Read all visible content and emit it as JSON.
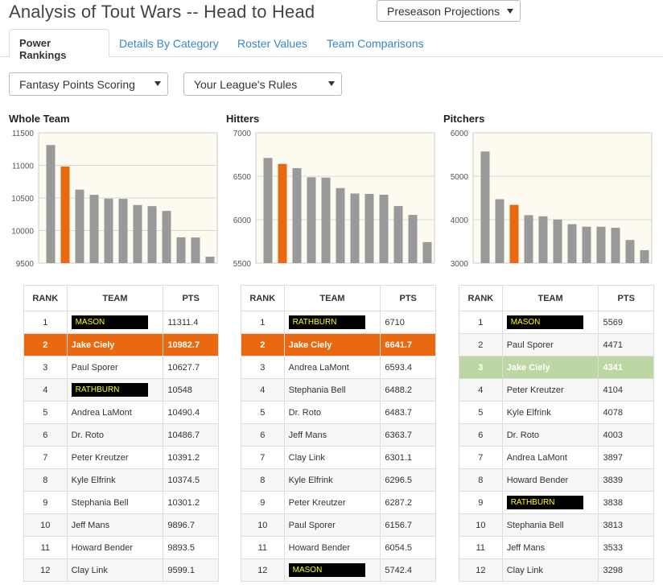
{
  "header": {
    "title": "Analysis of Tout Wars -- Head to Head",
    "projection_select": "Preseason Projections"
  },
  "tabs": [
    {
      "label": "Power Rankings",
      "active": true
    },
    {
      "label": "Details By Category",
      "active": false
    },
    {
      "label": "Roster Values",
      "active": false
    },
    {
      "label": "Team Comparisons",
      "active": false
    }
  ],
  "filters": {
    "scoring": "Fantasy Points Scoring",
    "rules": "Your League's Rules"
  },
  "colors": {
    "highlight": "#e8690f",
    "bar": "#999999",
    "green": "#bcd7a3",
    "plot_bg": "#fdfbef"
  },
  "table_headers": {
    "rank": "RANK",
    "team": "TEAM",
    "pts": "PTS"
  },
  "panels": [
    {
      "title": "Whole Team",
      "highlight_style": "orange",
      "rows": [
        {
          "rank": "1",
          "team": "MASON",
          "pts": "11311.4",
          "redacted": true
        },
        {
          "rank": "2",
          "team": "Jake Ciely",
          "pts": "10982.7",
          "highlight": true
        },
        {
          "rank": "3",
          "team": "Paul Sporer",
          "pts": "10627.7"
        },
        {
          "rank": "4",
          "team": "RATHBURN",
          "pts": "10548",
          "redacted": true
        },
        {
          "rank": "5",
          "team": "Andrea LaMont",
          "pts": "10490.4"
        },
        {
          "rank": "6",
          "team": "Dr. Roto",
          "pts": "10486.7"
        },
        {
          "rank": "7",
          "team": "Peter Kreutzer",
          "pts": "10391.2"
        },
        {
          "rank": "8",
          "team": "Kyle Elfrink",
          "pts": "10374.5"
        },
        {
          "rank": "9",
          "team": "Stephania Bell",
          "pts": "10301.2"
        },
        {
          "rank": "10",
          "team": "Jeff Mans",
          "pts": "9896.7"
        },
        {
          "rank": "11",
          "team": "Howard Bender",
          "pts": "9893.5"
        },
        {
          "rank": "12",
          "team": "Clay Link",
          "pts": "9599.1"
        }
      ]
    },
    {
      "title": "Hitters",
      "highlight_style": "orange",
      "rows": [
        {
          "rank": "1",
          "team": "RATHBURN",
          "pts": "6710",
          "redacted": true
        },
        {
          "rank": "2",
          "team": "Jake Ciely",
          "pts": "6641.7",
          "highlight": true
        },
        {
          "rank": "3",
          "team": "Andrea LaMont",
          "pts": "6593.4"
        },
        {
          "rank": "4",
          "team": "Stephania Bell",
          "pts": "6488.2"
        },
        {
          "rank": "5",
          "team": "Dr. Roto",
          "pts": "6483.7"
        },
        {
          "rank": "6",
          "team": "Jeff Mans",
          "pts": "6363.7"
        },
        {
          "rank": "7",
          "team": "Clay Link",
          "pts": "6301.1"
        },
        {
          "rank": "8",
          "team": "Kyle Elfrink",
          "pts": "6296.5"
        },
        {
          "rank": "9",
          "team": "Peter Kreutzer",
          "pts": "6287.2"
        },
        {
          "rank": "10",
          "team": "Paul Sporer",
          "pts": "6156.7"
        },
        {
          "rank": "11",
          "team": "Howard Bender",
          "pts": "6054.5"
        },
        {
          "rank": "12",
          "team": "MASON",
          "pts": "5742.4",
          "redacted": true
        }
      ]
    },
    {
      "title": "Pitchers",
      "highlight_style": "green",
      "rows": [
        {
          "rank": "1",
          "team": "MASON",
          "pts": "5569",
          "redacted": true
        },
        {
          "rank": "2",
          "team": "Paul Sporer",
          "pts": "4471"
        },
        {
          "rank": "3",
          "team": "Jake Ciely",
          "pts": "4341",
          "highlight": true
        },
        {
          "rank": "4",
          "team": "Peter Kreutzer",
          "pts": "4104"
        },
        {
          "rank": "5",
          "team": "Kyle Elfrink",
          "pts": "4078"
        },
        {
          "rank": "6",
          "team": "Dr. Roto",
          "pts": "4003"
        },
        {
          "rank": "7",
          "team": "Andrea LaMont",
          "pts": "3897"
        },
        {
          "rank": "8",
          "team": "Howard Bender",
          "pts": "3839"
        },
        {
          "rank": "9",
          "team": "RATHBURN",
          "pts": "3838",
          "redacted": true
        },
        {
          "rank": "10",
          "team": "Stephania Bell",
          "pts": "3813"
        },
        {
          "rank": "11",
          "team": "Jeff Mans",
          "pts": "3533"
        },
        {
          "rank": "12",
          "team": "Clay Link",
          "pts": "3298"
        }
      ]
    }
  ],
  "chart_data": [
    {
      "type": "bar",
      "title": "Whole Team",
      "ylim": [
        9500,
        11500
      ],
      "yticks": [
        9500,
        10000,
        10500,
        11000,
        11500
      ],
      "values": [
        11311.4,
        10982.7,
        10627.7,
        10548,
        10490.4,
        10486.7,
        10391.2,
        10374.5,
        10301.2,
        9896.7,
        9893.5,
        9599.1
      ],
      "highlight_index": 1,
      "grid": true
    },
    {
      "type": "bar",
      "title": "Hitters",
      "ylim": [
        5500,
        7000
      ],
      "yticks": [
        5500,
        6000,
        6500,
        7000
      ],
      "values": [
        6710,
        6641.7,
        6593.4,
        6488.2,
        6483.7,
        6363.7,
        6301.1,
        6296.5,
        6287.2,
        6156.7,
        6054.5,
        5742.4
      ],
      "highlight_index": 1,
      "grid": true
    },
    {
      "type": "bar",
      "title": "Pitchers",
      "ylim": [
        3000,
        6000
      ],
      "yticks": [
        3000,
        4000,
        5000,
        6000
      ],
      "values": [
        5569,
        4471,
        4341,
        4104,
        4078,
        4003,
        3897,
        3839,
        3838,
        3813,
        3533,
        3298
      ],
      "highlight_index": 2,
      "grid": true
    }
  ]
}
